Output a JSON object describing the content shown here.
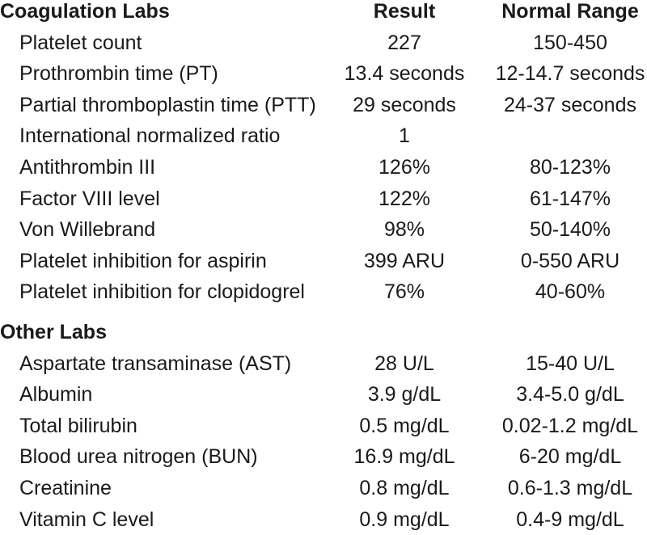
{
  "sections": [
    {
      "title": "Coagulation Labs",
      "result_header": "Result",
      "range_header": "Normal Range",
      "rows": [
        {
          "name": "Platelet count",
          "result": "227",
          "range": "150-450"
        },
        {
          "name": "Prothrombin time (PT)",
          "result": "13.4 seconds",
          "range": "12-14.7 seconds"
        },
        {
          "name": "Partial thromboplastin time (PTT)",
          "result": "29 seconds",
          "range": "24-37 seconds"
        },
        {
          "name": "International normalized ratio",
          "result": "1",
          "range": ""
        },
        {
          "name": "Antithrombin III",
          "result": "126%",
          "range": "80-123%"
        },
        {
          "name": "Factor VIII level",
          "result": "122%",
          "range": "61-147%"
        },
        {
          "name": "Von Willebrand",
          "result": "98%",
          "range": "50-140%"
        },
        {
          "name": "Platelet inhibition for aspirin",
          "result": "399 ARU",
          "range": "0-550 ARU"
        },
        {
          "name": "Platelet inhibition for clopidogrel",
          "result": "76%",
          "range": "40-60%"
        }
      ]
    },
    {
      "title": "Other Labs",
      "result_header": "",
      "range_header": "",
      "rows": [
        {
          "name": "Aspartate transaminase (AST)",
          "result": "28 U/L",
          "range": "15-40 U/L"
        },
        {
          "name": "Albumin",
          "result": "3.9 g/dL",
          "range": "3.4-5.0 g/dL"
        },
        {
          "name": "Total bilirubin",
          "result": "0.5 mg/dL",
          "range": "0.02-1.2 mg/dL"
        },
        {
          "name": "Blood urea nitrogen (BUN)",
          "result": "16.9 mg/dL",
          "range": "6-20 mg/dL"
        },
        {
          "name": "Creatinine",
          "result": "0.8 mg/dL",
          "range": "0.6-1.3 mg/dL"
        },
        {
          "name": "Vitamin C level",
          "result": "0.9 mg/dL",
          "range": "0.4-9 mg/dL"
        }
      ]
    }
  ]
}
